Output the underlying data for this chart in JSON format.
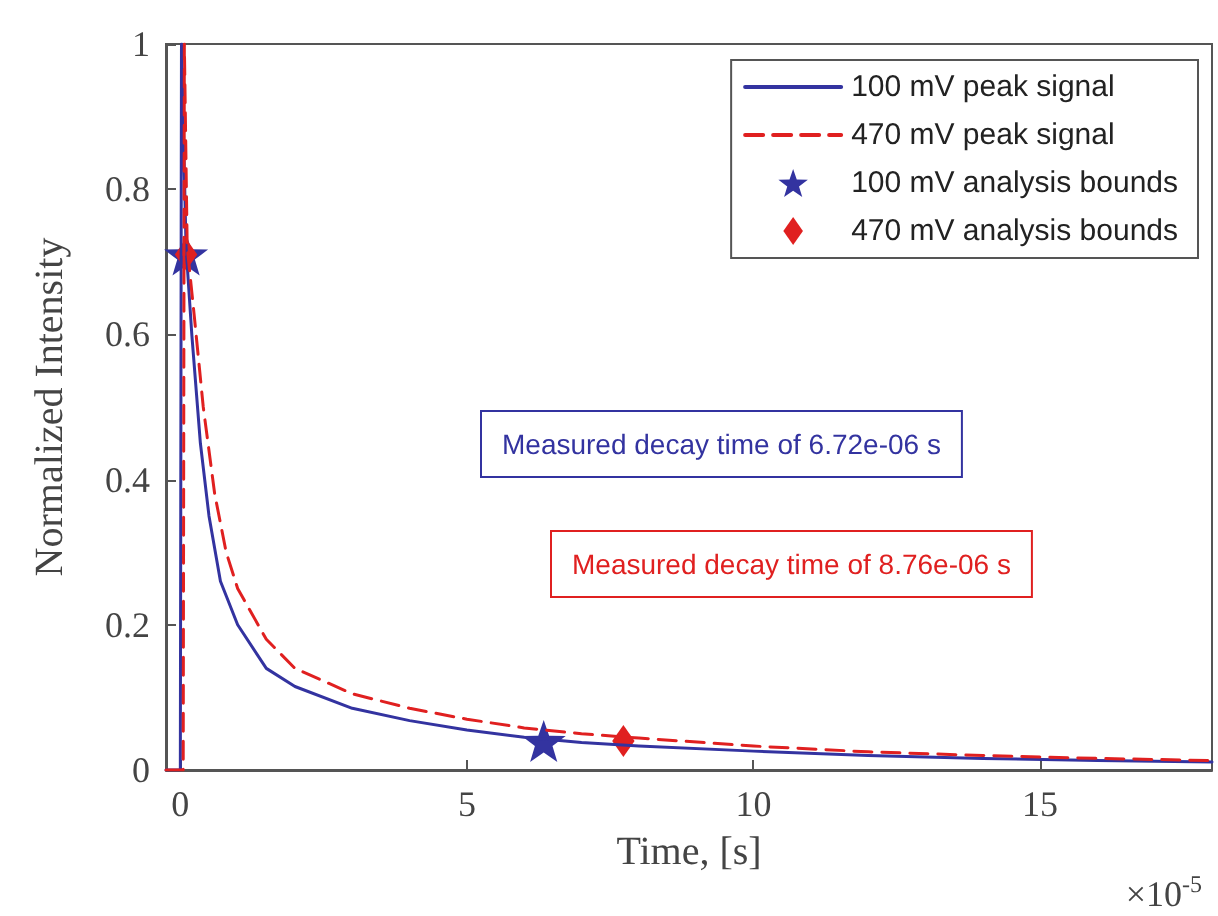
{
  "chart_data": {
    "type": "line",
    "xlabel": "Time, [s]",
    "ylabel": "Normalized Intensity",
    "annotations": [
      "Measured decay time of 6.72e-06 s",
      "Measured decay time of 8.76e-06 s",
      "×10$^{-5}$"
    ],
    "xlim": [
      -0.25,
      18
    ],
    "xticks": [
      0,
      5,
      10,
      15
    ],
    "ylim": [
      0,
      1
    ],
    "yticks": [
      0,
      0.2,
      0.4,
      0.6,
      0.8,
      1
    ],
    "grid": false,
    "legend": "top right",
    "series": [
      {
        "name": "100 mV peak signal",
        "color": "#3333a0",
        "line_style": "solid",
        "marker": "none",
        "x": [
          -0.25,
          0,
          0.02,
          0.1,
          0.2,
          0.35,
          0.5,
          0.7,
          1,
          1.5,
          2,
          3,
          4,
          5,
          6,
          7,
          8,
          10,
          12,
          14,
          16,
          18
        ],
        "values": [
          0,
          0,
          1,
          0.72,
          0.6,
          0.45,
          0.35,
          0.26,
          0.2,
          0.14,
          0.115,
          0.085,
          0.068,
          0.055,
          0.045,
          0.038,
          0.033,
          0.026,
          0.02,
          0.016,
          0.013,
          0.011
        ]
      },
      {
        "name": "470 mV peak signal",
        "color": "#e02020",
        "line_style": "dashed",
        "marker": "none",
        "x": [
          -0.25,
          0.05,
          0.07,
          0.12,
          0.25,
          0.4,
          0.6,
          0.8,
          1,
          1.5,
          2,
          3,
          4,
          5,
          6,
          7,
          8,
          10,
          12,
          14,
          16,
          18
        ],
        "values": [
          0,
          0,
          1,
          0.72,
          0.62,
          0.5,
          0.38,
          0.3,
          0.25,
          0.18,
          0.14,
          0.105,
          0.085,
          0.07,
          0.058,
          0.05,
          0.044,
          0.033,
          0.025,
          0.02,
          0.016,
          0.013
        ]
      },
      {
        "name": "100 mV analysis bounds",
        "type": "scatter",
        "color": "#3333a0",
        "marker": "star",
        "x": [
          0.1,
          6.34
        ],
        "values": [
          0.71,
          0.04
        ]
      },
      {
        "name": "470 mV analysis bounds",
        "type": "scatter",
        "color": "#e02020",
        "marker": "diamond",
        "x": [
          0.1,
          7.73
        ],
        "values": [
          0.71,
          0.04
        ]
      }
    ]
  }
}
